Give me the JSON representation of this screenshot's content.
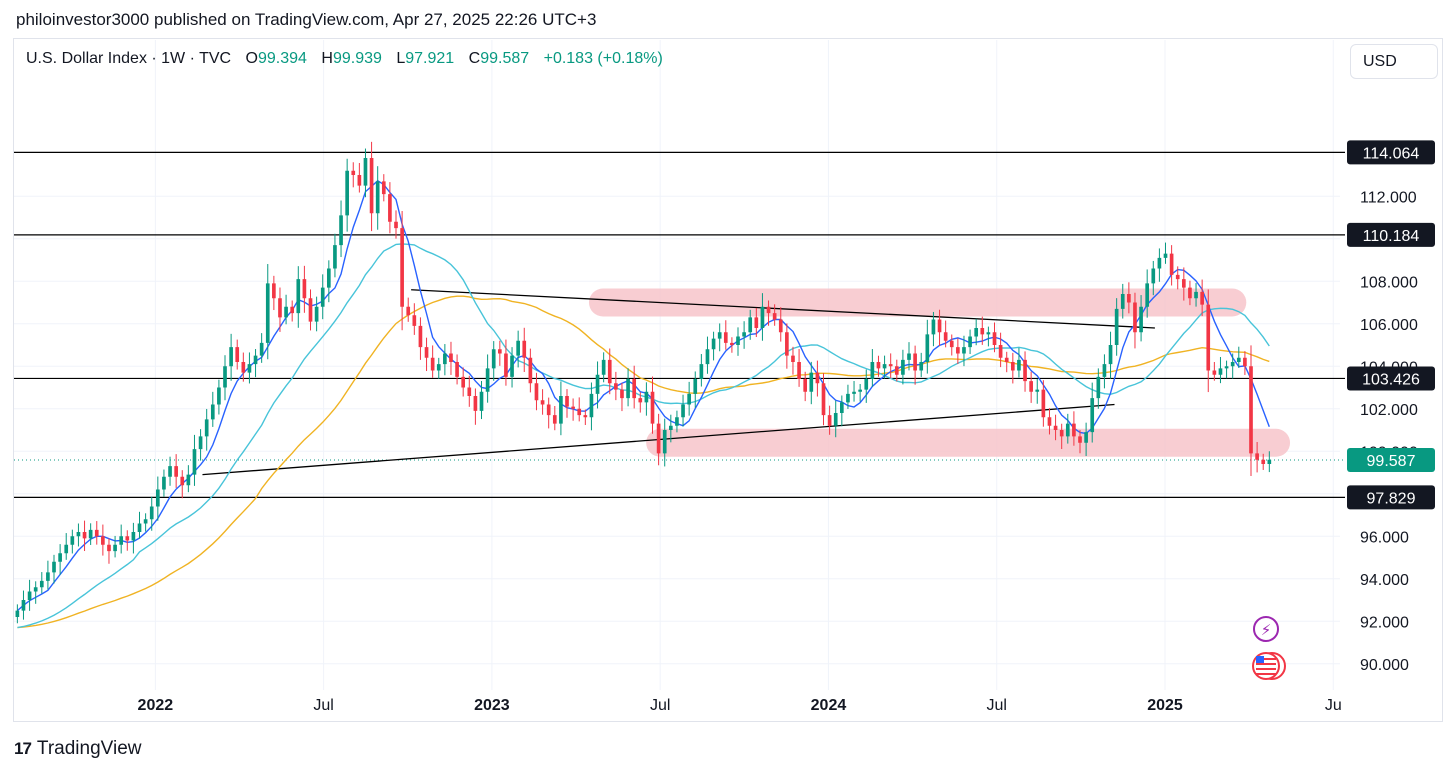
{
  "header": {
    "published": "philoinvestor3000 published on TradingView.com, Apr 27, 2025 22:26 UTC+3"
  },
  "legend": {
    "symbol": "U.S. Dollar Index · 1W · TVC",
    "o_label": "O",
    "o_value": "99.394",
    "h_label": "H",
    "h_value": "99.939",
    "l_label": "L",
    "l_value": "97.921",
    "c_label": "C",
    "c_value": "99.587",
    "change": "+0.183 (+0.18%)"
  },
  "currency_button": "USD",
  "footer": {
    "brand": "TradingView",
    "logo_glyph": "17"
  },
  "colors": {
    "up": "#089981",
    "down": "#f23645",
    "ma_fast": "#2962ff",
    "ma_mid": "#48c4d9",
    "ma_slow": "#f0b323",
    "zone": "#f7c5cb",
    "level_line": "#000000",
    "current_price": "#089981"
  },
  "icons": [
    "lightning-icon",
    "us-flag-icon"
  ],
  "chart_data": {
    "type": "candlestick",
    "title": "U.S. Dollar Index",
    "interval": "1W",
    "ylim": [
      89.0,
      117.0
    ],
    "y_ticks": [
      "90.000",
      "92.000",
      "94.000",
      "96.000",
      "98.000",
      "100.000",
      "102.000",
      "104.000",
      "106.000",
      "108.000",
      "110.000",
      "112.000"
    ],
    "x_ticks": [
      {
        "label": "2022",
        "bold": true,
        "t": 2022.0
      },
      {
        "label": "Jul",
        "bold": false,
        "t": 2022.5
      },
      {
        "label": "2023",
        "bold": true,
        "t": 2023.0
      },
      {
        "label": "Jul",
        "bold": false,
        "t": 2023.5
      },
      {
        "label": "2024",
        "bold": true,
        "t": 2024.0
      },
      {
        "label": "Jul",
        "bold": false,
        "t": 2024.5
      },
      {
        "label": "2025",
        "bold": true,
        "t": 2025.0
      },
      {
        "label": "Ju",
        "bold": false,
        "t": 2025.5
      }
    ],
    "xlim": [
      2021.58,
      2025.52
    ],
    "horizontal_levels": [
      {
        "value": 114.064,
        "label": "114.064"
      },
      {
        "value": 110.184,
        "label": "110.184"
      },
      {
        "value": 103.426,
        "label": "103.426"
      },
      {
        "value": 97.829,
        "label": "97.829"
      }
    ],
    "current_price": {
      "value": 99.587,
      "label": "99.587"
    },
    "trendlines": [
      {
        "from": [
          2022.14,
          98.9
        ],
        "to": [
          2024.85,
          102.2
        ]
      },
      {
        "from": [
          2022.76,
          107.6
        ],
        "to": [
          2024.97,
          105.8
        ]
      }
    ],
    "zones": [
      {
        "t0": 2023.33,
        "t1": 2025.2,
        "y": 107.0
      },
      {
        "t0": 2023.5,
        "t1": 2025.33,
        "y": 100.4
      }
    ],
    "weekly_closes": [
      92.5,
      93.0,
      93.4,
      93.6,
      93.9,
      94.3,
      94.8,
      95.2,
      95.6,
      96.0,
      96.2,
      95.9,
      96.3,
      96.0,
      95.6,
      95.3,
      95.6,
      96.0,
      95.8,
      96.2,
      96.6,
      96.8,
      97.4,
      98.2,
      98.8,
      99.3,
      98.8,
      98.4,
      98.9,
      100.1,
      100.7,
      101.5,
      102.2,
      103.0,
      104.0,
      104.9,
      104.2,
      103.7,
      104.1,
      104.5,
      105.1,
      107.9,
      107.2,
      106.3,
      106.8,
      106.5,
      108.1,
      107.2,
      106.1,
      106.8,
      107.7,
      108.6,
      109.7,
      111.1,
      113.2,
      113.0,
      112.5,
      113.8,
      111.2,
      112.7,
      112.1,
      110.8,
      110.5,
      106.8,
      106.4,
      105.9,
      104.9,
      104.4,
      103.8,
      104.1,
      104.6,
      104.2,
      103.5,
      103.0,
      102.6,
      101.9,
      102.8,
      103.9,
      104.8,
      104.6,
      103.5,
      104.5,
      105.2,
      104.4,
      103.2,
      102.4,
      102.2,
      101.7,
      101.3,
      102.6,
      102.1,
      102.0,
      101.7,
      101.6,
      102.7,
      103.6,
      104.3,
      103.2,
      102.9,
      102.5,
      103.4,
      102.5,
      102.3,
      102.8,
      101.3,
      99.9,
      101.0,
      101.2,
      101.6,
      102.2,
      102.7,
      103.4,
      104.1,
      104.8,
      105.3,
      105.6,
      105.1,
      105.0,
      105.4,
      105.6,
      106.3,
      105.8,
      106.8,
      106.5,
      106.2,
      105.6,
      104.5,
      104.2,
      103.4,
      102.8,
      103.7,
      103.2,
      101.7,
      101.2,
      101.8,
      102.3,
      102.7,
      102.8,
      102.9,
      103.4,
      104.2,
      103.9,
      104.1,
      104.0,
      103.6,
      104.3,
      104.6,
      103.8,
      104.2,
      105.5,
      106.2,
      105.6,
      105.2,
      104.9,
      104.6,
      104.9,
      105.4,
      105.8,
      105.5,
      105.6,
      105.0,
      104.4,
      104.2,
      103.8,
      104.3,
      103.3,
      102.8,
      102.9,
      101.6,
      101.2,
      101.0,
      100.7,
      101.3,
      100.7,
      100.4,
      100.9,
      102.5,
      103.5,
      104.1,
      105.0,
      106.7,
      107.4,
      107.0,
      105.6,
      106.8,
      107.9,
      108.6,
      109.1,
      109.3,
      108.3,
      108.1,
      107.7,
      107.2,
      107.5,
      106.9,
      103.8,
      103.6,
      103.9,
      104.0,
      104.2,
      104.4,
      104.0,
      99.9,
      99.6,
      99.4,
      99.6
    ],
    "series": [
      {
        "name": "",
        "kind": "moving-average-fast"
      },
      {
        "name": "",
        "kind": "moving-average-mid"
      },
      {
        "name": "",
        "kind": "moving-average-slow"
      }
    ]
  }
}
